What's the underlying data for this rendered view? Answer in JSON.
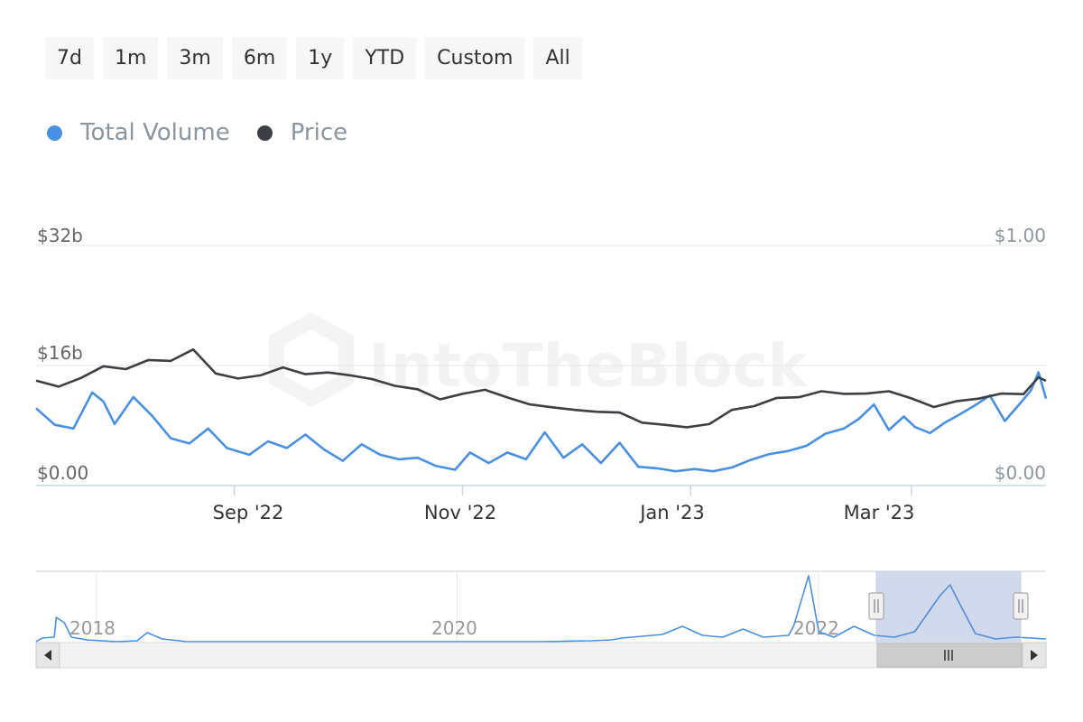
{
  "range_buttons": [
    "7d",
    "1m",
    "3m",
    "6m",
    "1y",
    "YTD",
    "Custom",
    "All"
  ],
  "legend": [
    {
      "label": "Total Volume",
      "color": "#4a90e2"
    },
    {
      "label": "Price",
      "color": "#3c3f44"
    }
  ],
  "watermark": "IntoTheBlock",
  "chart_data": {
    "type": "line",
    "x_axis": {
      "type": "date",
      "range": [
        "2022-07-10",
        "2023-04-06"
      ],
      "tick_labels": [
        "Sep '22",
        "Nov '22",
        "Jan '23",
        "Mar '23"
      ],
      "ticks": [
        "2022-09-01",
        "2022-11-01",
        "2023-01-01",
        "2023-03-01"
      ]
    },
    "y_axis_left": {
      "label": "",
      "ticks": [
        "$0.00",
        "$16b",
        "$32b"
      ],
      "range_billions": [
        0,
        32
      ]
    },
    "y_axis_right": {
      "label": "",
      "ticks": [
        "$0.00",
        "$1.00"
      ],
      "range_usd": [
        0,
        1
      ]
    },
    "grid": true,
    "series": [
      {
        "name": "Total Volume",
        "axis": "left",
        "unit": "USD billions",
        "points": [
          [
            "2022-07-10",
            10.3
          ],
          [
            "2022-07-15",
            8.1
          ],
          [
            "2022-07-20",
            7.6
          ],
          [
            "2022-07-25",
            12.4
          ],
          [
            "2022-07-28",
            11.2
          ],
          [
            "2022-07-31",
            8.2
          ],
          [
            "2022-08-05",
            11.8
          ],
          [
            "2022-08-10",
            9.3
          ],
          [
            "2022-08-15",
            6.3
          ],
          [
            "2022-08-20",
            5.6
          ],
          [
            "2022-08-25",
            7.6
          ],
          [
            "2022-08-30",
            5.0
          ],
          [
            "2022-09-05",
            4.1
          ],
          [
            "2022-09-10",
            5.9
          ],
          [
            "2022-09-15",
            5.0
          ],
          [
            "2022-09-20",
            6.8
          ],
          [
            "2022-09-25",
            4.8
          ],
          [
            "2022-09-30",
            3.3
          ],
          [
            "2022-10-05",
            5.5
          ],
          [
            "2022-10-10",
            4.1
          ],
          [
            "2022-10-15",
            3.5
          ],
          [
            "2022-10-20",
            3.7
          ],
          [
            "2022-10-25",
            2.6
          ],
          [
            "2022-10-30",
            2.1
          ],
          [
            "2022-11-03",
            4.4
          ],
          [
            "2022-11-08",
            3.0
          ],
          [
            "2022-11-13",
            4.4
          ],
          [
            "2022-11-18",
            3.5
          ],
          [
            "2022-11-23",
            7.1
          ],
          [
            "2022-11-28",
            3.7
          ],
          [
            "2022-12-03",
            5.5
          ],
          [
            "2022-12-08",
            3.0
          ],
          [
            "2022-12-13",
            5.7
          ],
          [
            "2022-12-18",
            2.5
          ],
          [
            "2022-12-23",
            2.3
          ],
          [
            "2022-12-28",
            1.9
          ],
          [
            "2023-01-02",
            2.2
          ],
          [
            "2023-01-07",
            1.9
          ],
          [
            "2023-01-12",
            2.4
          ],
          [
            "2023-01-17",
            3.4
          ],
          [
            "2023-01-22",
            4.2
          ],
          [
            "2023-01-27",
            4.6
          ],
          [
            "2023-02-01",
            5.3
          ],
          [
            "2023-02-06",
            6.9
          ],
          [
            "2023-02-11",
            7.6
          ],
          [
            "2023-02-15",
            8.9
          ],
          [
            "2023-02-19",
            10.8
          ],
          [
            "2023-02-23",
            7.4
          ],
          [
            "2023-02-27",
            9.2
          ],
          [
            "2023-03-02",
            7.8
          ],
          [
            "2023-03-06",
            7.0
          ],
          [
            "2023-03-10",
            8.4
          ],
          [
            "2023-03-14",
            9.5
          ],
          [
            "2023-03-18",
            10.7
          ],
          [
            "2023-03-22",
            12.0
          ],
          [
            "2023-03-26",
            8.6
          ],
          [
            "2023-03-30",
            10.9
          ],
          [
            "2023-04-02",
            12.7
          ],
          [
            "2023-04-04",
            15.1
          ],
          [
            "2023-04-06",
            11.6
          ]
        ]
      },
      {
        "name": "Price",
        "axis": "right",
        "unit": "USD",
        "points": [
          [
            "2022-07-10",
            0.437
          ],
          [
            "2022-07-16",
            0.412
          ],
          [
            "2022-07-22",
            0.448
          ],
          [
            "2022-07-28",
            0.497
          ],
          [
            "2022-08-03",
            0.485
          ],
          [
            "2022-08-09",
            0.523
          ],
          [
            "2022-08-15",
            0.519
          ],
          [
            "2022-08-21",
            0.567
          ],
          [
            "2022-08-27",
            0.467
          ],
          [
            "2022-09-02",
            0.446
          ],
          [
            "2022-09-08",
            0.459
          ],
          [
            "2022-09-14",
            0.492
          ],
          [
            "2022-09-20",
            0.464
          ],
          [
            "2022-09-26",
            0.471
          ],
          [
            "2022-10-02",
            0.459
          ],
          [
            "2022-10-08",
            0.443
          ],
          [
            "2022-10-14",
            0.415
          ],
          [
            "2022-10-20",
            0.401
          ],
          [
            "2022-10-26",
            0.359
          ],
          [
            "2022-11-01",
            0.382
          ],
          [
            "2022-11-07",
            0.399
          ],
          [
            "2022-11-13",
            0.367
          ],
          [
            "2022-11-19",
            0.338
          ],
          [
            "2022-11-25",
            0.326
          ],
          [
            "2022-12-01",
            0.315
          ],
          [
            "2022-12-07",
            0.307
          ],
          [
            "2022-12-13",
            0.304
          ],
          [
            "2022-12-19",
            0.262
          ],
          [
            "2022-12-25",
            0.253
          ],
          [
            "2022-12-31",
            0.243
          ],
          [
            "2023-01-06",
            0.256
          ],
          [
            "2023-01-12",
            0.315
          ],
          [
            "2023-01-18",
            0.331
          ],
          [
            "2023-01-24",
            0.365
          ],
          [
            "2023-01-30",
            0.368
          ],
          [
            "2023-02-05",
            0.393
          ],
          [
            "2023-02-11",
            0.382
          ],
          [
            "2023-02-17",
            0.383
          ],
          [
            "2023-02-23",
            0.393
          ],
          [
            "2023-03-01",
            0.363
          ],
          [
            "2023-03-07",
            0.327
          ],
          [
            "2023-03-13",
            0.351
          ],
          [
            "2023-03-19",
            0.362
          ],
          [
            "2023-03-25",
            0.383
          ],
          [
            "2023-03-31",
            0.381
          ],
          [
            "2023-04-04",
            0.451
          ],
          [
            "2023-04-06",
            0.436
          ]
        ]
      }
    ]
  },
  "navigator": {
    "year_labels": [
      "2018",
      "2020",
      "2022"
    ],
    "year_ticks": [
      "2018-01-01",
      "2020-01-01",
      "2022-01-01"
    ],
    "range": [
      "2017-09-01",
      "2023-04-06"
    ],
    "selection": [
      "2022-07-10",
      "2023-04-06"
    ]
  }
}
